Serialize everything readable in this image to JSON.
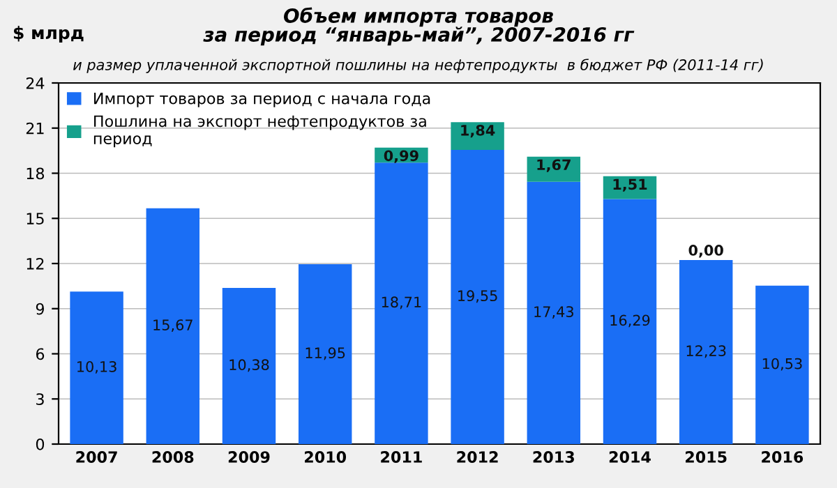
{
  "chart_data": {
    "type": "bar",
    "title": "Объем импорта товаров\nза период “январь-май”, 2007-2016 гг",
    "subtitle": "и размер уплаченной экспортной пошлины на нефтепродукты  в бюджет РФ (2011-14 гг)",
    "ylabel": "$ млрд",
    "categories": [
      "2007",
      "2008",
      "2009",
      "2010",
      "2011",
      "2012",
      "2013",
      "2014",
      "2015",
      "2016"
    ],
    "stacked": true,
    "series": [
      {
        "name": "Импорт товаров за период с начала года",
        "color": "#1a6ef5",
        "values": [
          10.13,
          15.67,
          10.38,
          11.95,
          18.71,
          19.55,
          17.43,
          16.29,
          12.23,
          10.53
        ],
        "value_labels": [
          "10,13",
          "15,67",
          "10,38",
          "11,95",
          "18,71",
          "19,55",
          "17,43",
          "16,29",
          "12,23",
          "10,53"
        ]
      },
      {
        "name": "Пошлина на экспорт нефтепродуктов за период",
        "color": "#16a08c",
        "values": [
          null,
          null,
          null,
          null,
          0.99,
          1.84,
          1.67,
          1.51,
          0.0,
          null
        ],
        "value_labels": [
          null,
          null,
          null,
          null,
          "0,99",
          "1,84",
          "1,67",
          "1,51",
          "0,00",
          null
        ]
      }
    ],
    "ylim": [
      0,
      24
    ],
    "yticks": [
      0,
      3,
      6,
      9,
      12,
      15,
      18,
      21,
      24
    ],
    "grid": "y",
    "legend": "top left"
  }
}
